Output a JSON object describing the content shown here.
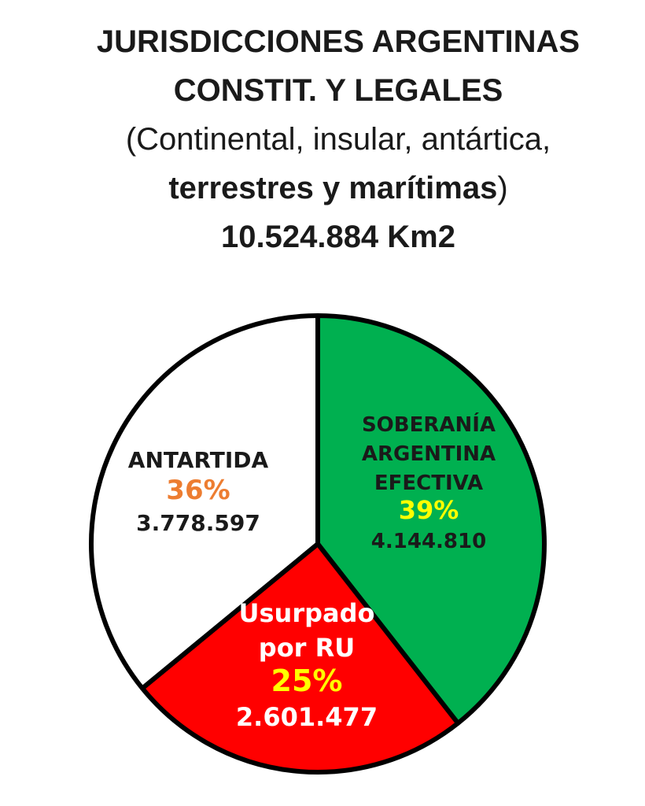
{
  "title": {
    "line1": "JURISDICCIONES ARGENTINAS",
    "line2": "CONSTIT. Y LEGALES",
    "line3": "(Continental, insular, antártica,",
    "line4_bold": "terrestres y marítimas",
    "line4_paren": ")",
    "line5": "10.524.884 Km2"
  },
  "chart_data": {
    "type": "pie",
    "total_label": "10.524.884 Km2",
    "slices": [
      {
        "label_lines": [
          "SOBERANÍA",
          "ARGENTINA",
          "EFECTIVA"
        ],
        "percent_label": "39%",
        "value_label": "4.144.810",
        "value": 4144810,
        "color": "#00b050",
        "label_color": "#1a1a1a",
        "percent_color": "#ffff00"
      },
      {
        "label_lines": [
          "Usurpado",
          "por RU"
        ],
        "percent_label": "25%",
        "value_label": "2.601.477",
        "value": 2601477,
        "color": "#ff0000",
        "label_color": "#ffffff",
        "percent_color": "#ffff00"
      },
      {
        "label_lines": [
          "ANTARTIDA"
        ],
        "percent_label": "36%",
        "value_label": "3.778.597",
        "value": 3778597,
        "color": "#ffffff",
        "label_color": "#1a1a1a",
        "percent_color": "#ed7d31"
      }
    ]
  }
}
